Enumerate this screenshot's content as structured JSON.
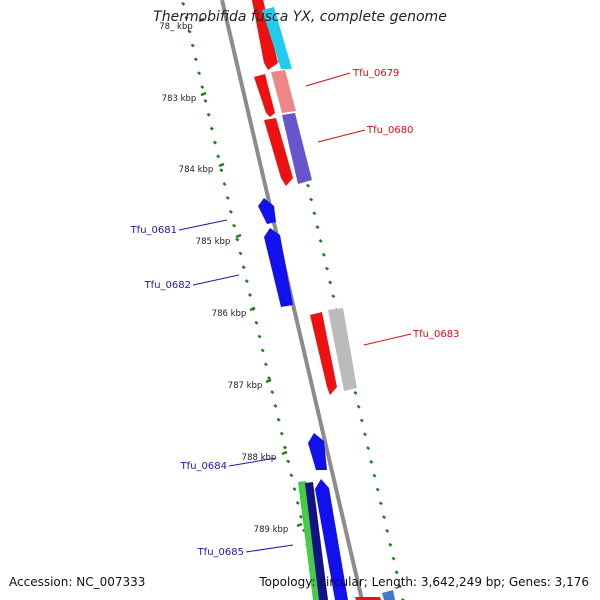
{
  "title": "Thermobifida fusca YX, complete genome",
  "accession": "Accession: NC_007333",
  "summary": "Topology: circular; Length: 3,642,249 bp; Genes: 3,176",
  "colors": {
    "backbone": "#8c8c8c",
    "tick": "#1e7f1e",
    "forward_label": "#d41010",
    "reverse_label": "#1a1aa8",
    "red": "#ee1111",
    "salmon": "#ee8888",
    "cyan": "#22ccee",
    "purple": "#6655cc",
    "blue": "#1111ee",
    "gray": "#bbbbbb",
    "green": "#44cc44",
    "navy": "#111188"
  },
  "ticks": [
    "78_ kbp",
    "783 kbp",
    "784 kbp",
    "785 kbp",
    "786 kbp",
    "787 kbp",
    "788 kbp",
    "789 kbp"
  ],
  "gene_labels": [
    {
      "name": "Tfu_0679",
      "strand": "forward"
    },
    {
      "name": "Tfu_0680",
      "strand": "forward"
    },
    {
      "name": "Tfu_0681",
      "strand": "reverse"
    },
    {
      "name": "Tfu_0682",
      "strand": "reverse"
    },
    {
      "name": "Tfu_0683",
      "strand": "forward"
    },
    {
      "name": "Tfu_0684",
      "strand": "reverse"
    },
    {
      "name": "Tfu_0685",
      "strand": "reverse"
    }
  ]
}
